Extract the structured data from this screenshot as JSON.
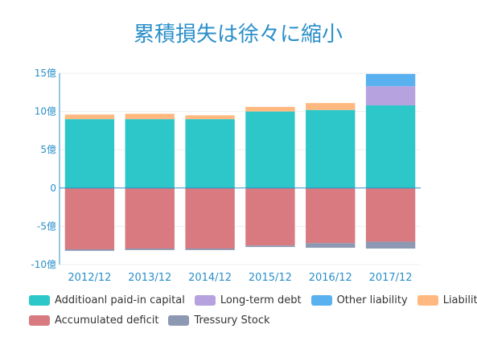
{
  "chart_data": {
    "type": "bar",
    "stacked": true,
    "title": "累積損失は徐々に縮小",
    "categories": [
      "2012/12",
      "2013/12",
      "2014/12",
      "2015/12",
      "2016/12",
      "2017/12"
    ],
    "ylim": [
      -10,
      15
    ],
    "yticks": [
      -10,
      -5,
      0,
      5,
      10,
      15
    ],
    "ytick_labels": [
      "-10億",
      "-5億",
      "0",
      "5億",
      "10億",
      "15億"
    ],
    "grid": true,
    "legend_position": "bottom",
    "series": [
      {
        "name": "Additioanl paid-in capital",
        "color": "#2ec7c9",
        "values": [
          9.0,
          9.0,
          9.0,
          10.0,
          10.2,
          10.8
        ]
      },
      {
        "name": "Long-term debt",
        "color": "#b6a2de",
        "values": [
          0,
          0,
          0,
          0,
          0,
          2.5
        ]
      },
      {
        "name": "Other liability",
        "color": "#5ab1ef",
        "values": [
          0,
          0,
          0,
          0,
          0,
          1.6
        ]
      },
      {
        "name": "Liability",
        "color": "#ffb980",
        "values": [
          0.6,
          0.7,
          0.5,
          0.6,
          0.9,
          0
        ]
      },
      {
        "name": "Accumulated deficit",
        "color": "#d87a80",
        "values": [
          -8.0,
          -7.9,
          -7.9,
          -7.5,
          -7.2,
          -7.0
        ]
      },
      {
        "name": "Tressury Stock",
        "color": "#8d98b3",
        "values": [
          -0.2,
          -0.2,
          -0.2,
          -0.2,
          -0.6,
          -0.9
        ]
      }
    ],
    "legend_rows": [
      [
        0,
        1,
        2,
        3
      ],
      [
        4,
        5
      ]
    ]
  }
}
